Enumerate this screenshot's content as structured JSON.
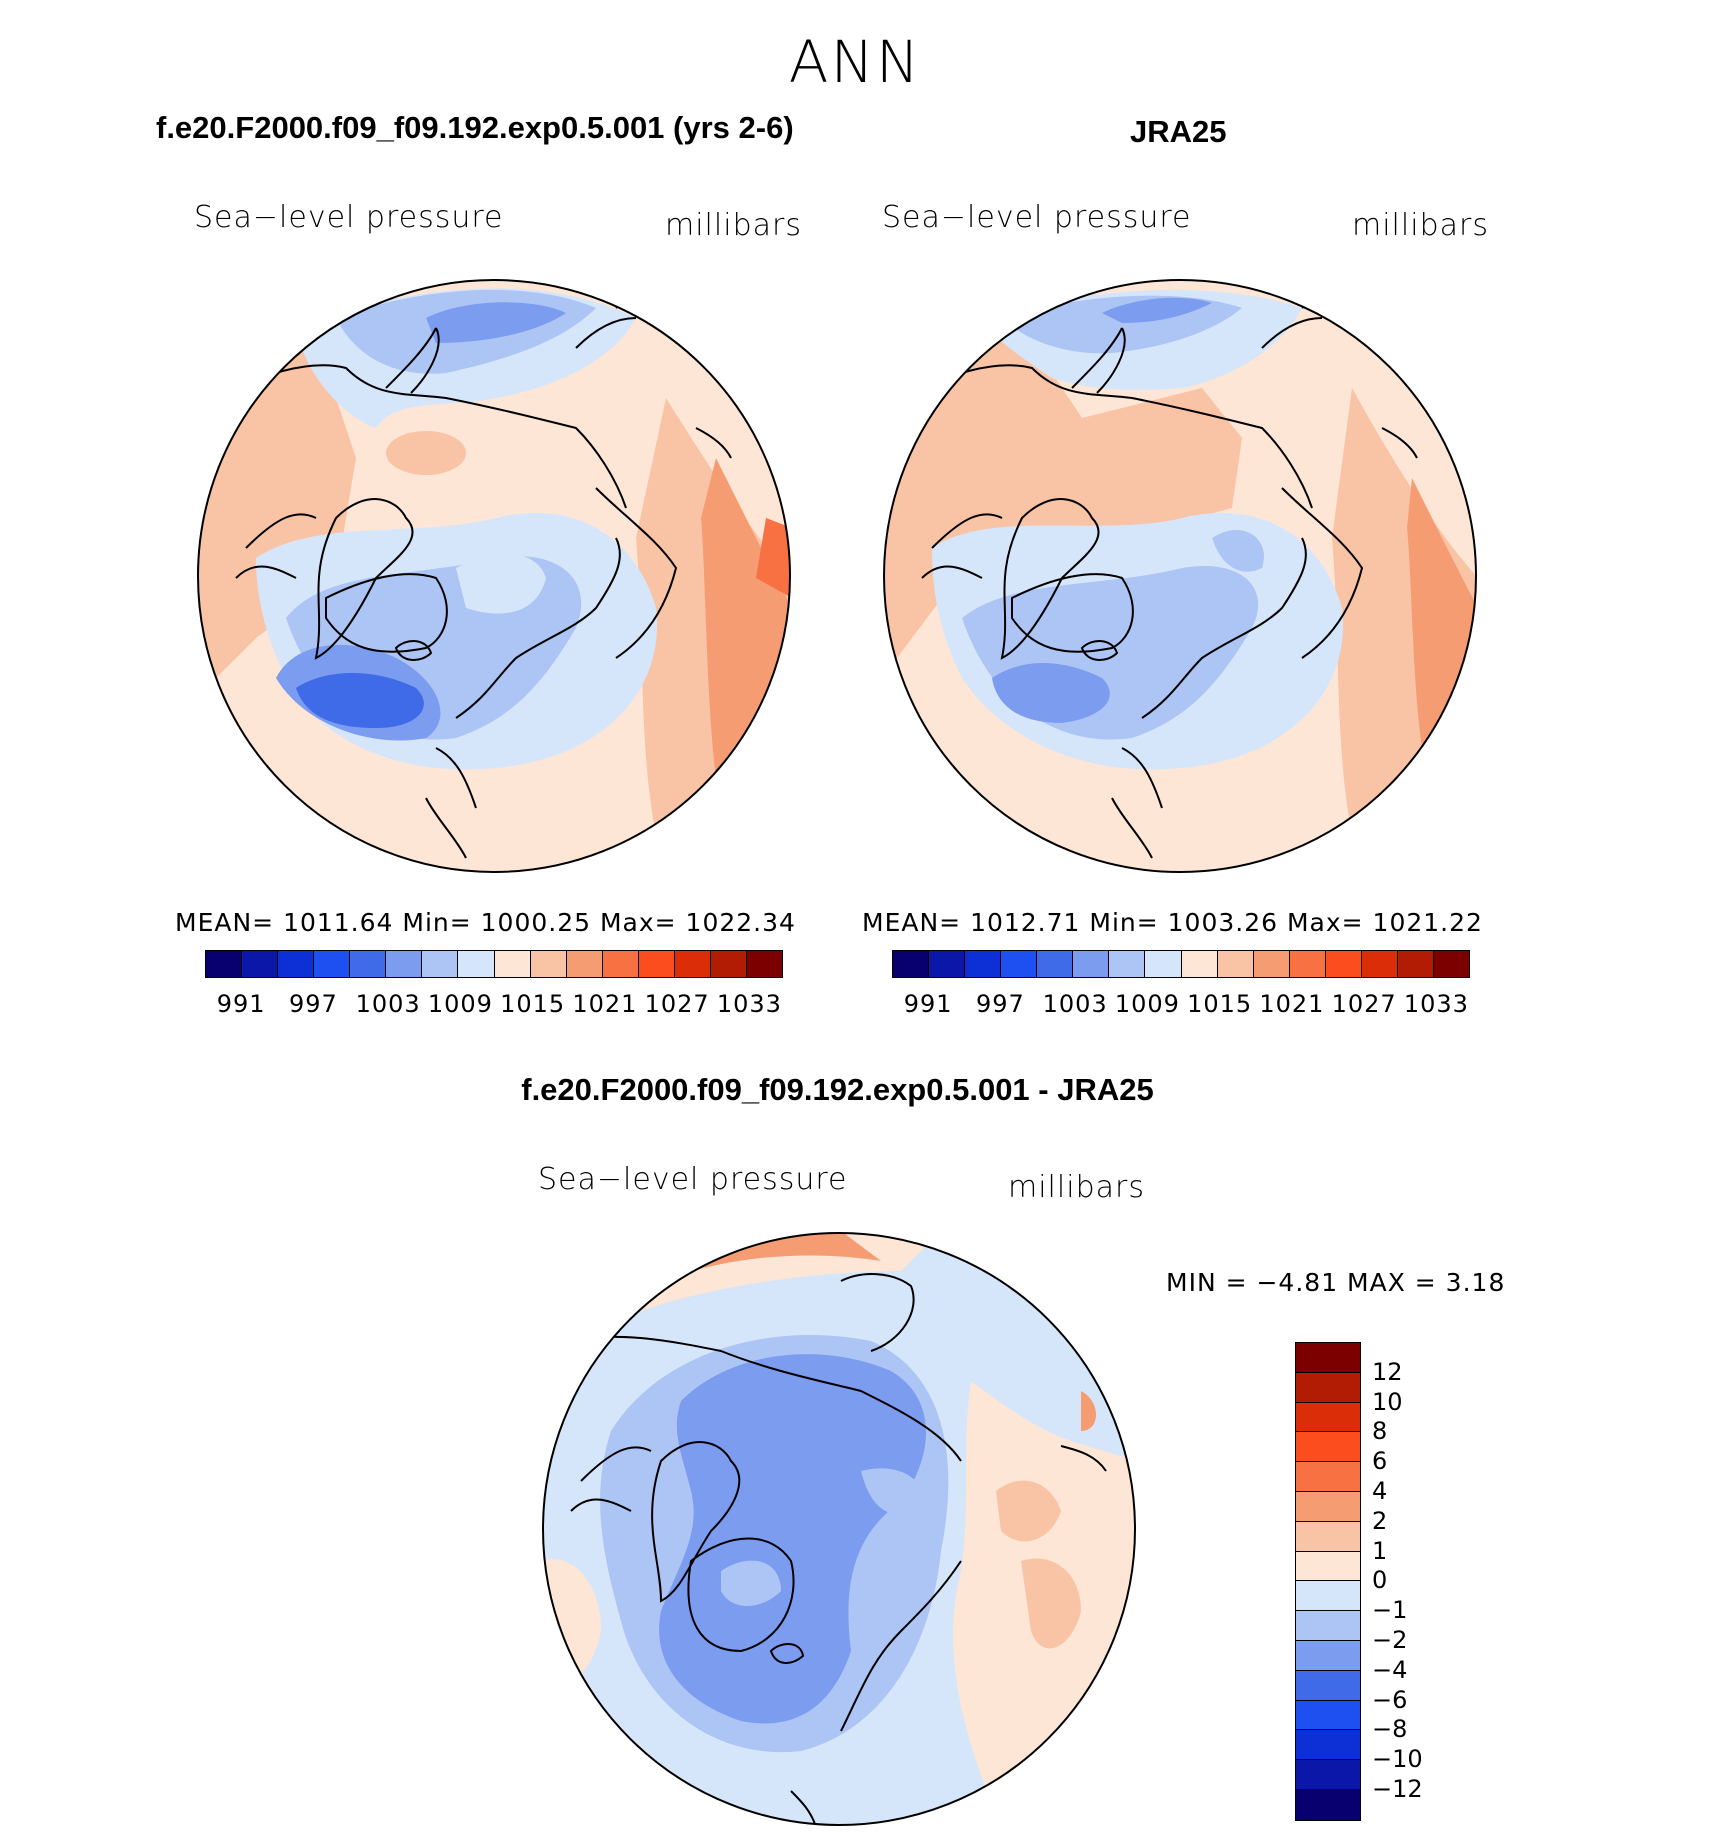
{
  "figure_title": "ANN",
  "panels": [
    {
      "case": "f.e20.F2000.f09_f09.192.exp0.5.001 (yrs 2-6)",
      "variable": "Sea−level pressure",
      "units": "millibars",
      "stats": "MEAN=  1011.64    Min=  1000.25    Max=  1022.34"
    },
    {
      "case": "JRA25",
      "variable": "Sea−level pressure",
      "units": "millibars",
      "stats": "MEAN=  1012.71    Min=  1003.26    Max=  1021.22"
    },
    {
      "case": "f.e20.F2000.f09_f09.192.exp0.5.001 - JRA25",
      "variable": "Sea−level pressure",
      "units": "millibars",
      "stats": "MIN  =    −4.81  MAX  =      3.18"
    }
  ],
  "colorbar_abs": {
    "labels": [
      "991",
      "997",
      "1003",
      "1009",
      "1015",
      "1021",
      "1027",
      "1033"
    ],
    "colors": [
      "#08006e",
      "#0a17a8",
      "#0c2fd6",
      "#1e4ff0",
      "#3f6ae8",
      "#7c9cf0",
      "#adc5f5",
      "#d6e6fa",
      "#fde6d6",
      "#f9c3a6",
      "#f59c73",
      "#f87142",
      "#fb4d1e",
      "#db2e08",
      "#b21c04",
      "#7d0000"
    ]
  },
  "colorbar_diff": {
    "labels": [
      "12",
      "10",
      "8",
      "6",
      "4",
      "2",
      "1",
      "0",
      "−1",
      "−2",
      "−4",
      "−6",
      "−8",
      "−10",
      "−12"
    ],
    "colors": [
      "#7d0000",
      "#b21c04",
      "#db2e08",
      "#fb4d1e",
      "#f87142",
      "#f59c73",
      "#f9c3a6",
      "#fde6d6",
      "#d6e6fa",
      "#adc5f5",
      "#7c9cf0",
      "#3f6ae8",
      "#1e4ff0",
      "#0c2fd6",
      "#0a17a8",
      "#08006e"
    ]
  }
}
